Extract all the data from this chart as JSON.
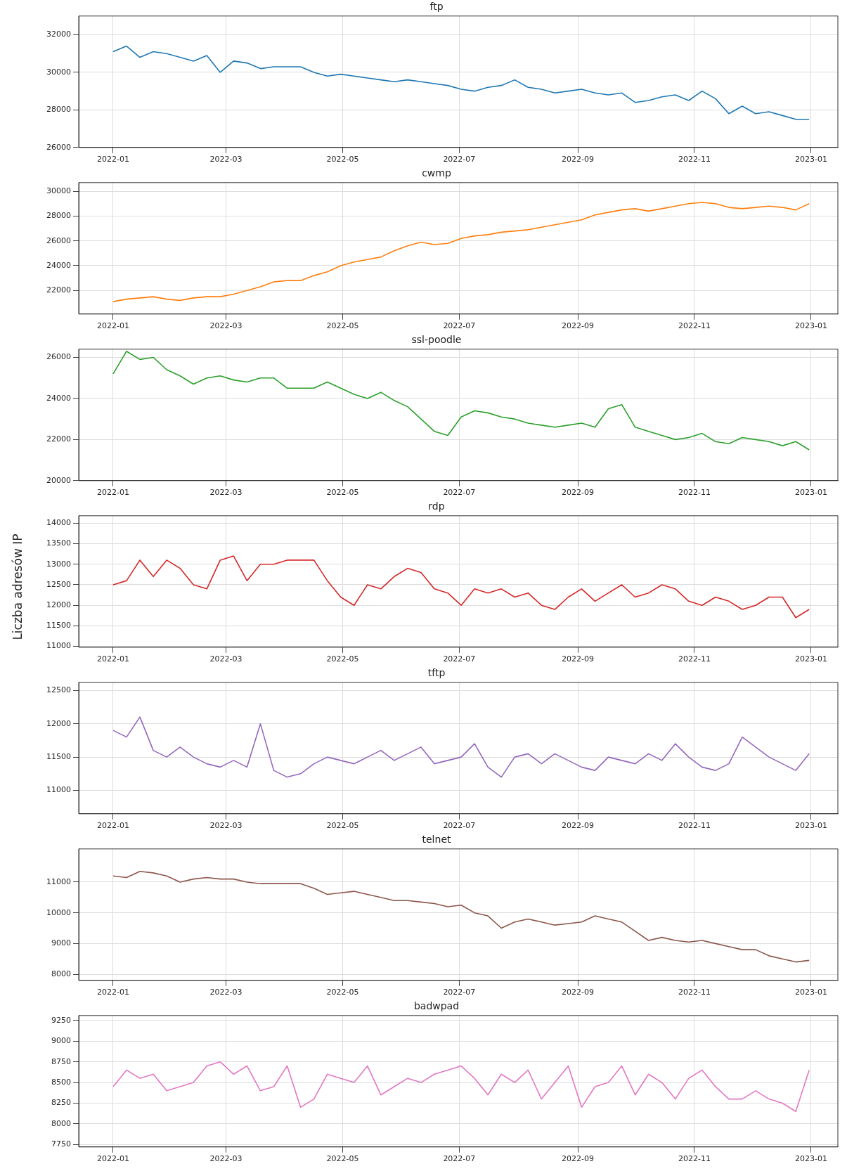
{
  "chart_data": [
    {
      "type": "line",
      "title": "ftp",
      "x": [
        "2022-01-01",
        "2022-01-08",
        "2022-01-15",
        "2022-01-22",
        "2022-01-29",
        "2022-02-05",
        "2022-02-12",
        "2022-02-19",
        "2022-02-26",
        "2022-03-05",
        "2022-03-12",
        "2022-03-19",
        "2022-03-26",
        "2022-04-02",
        "2022-04-09",
        "2022-04-16",
        "2022-04-23",
        "2022-04-30",
        "2022-05-07",
        "2022-05-14",
        "2022-05-21",
        "2022-05-28",
        "2022-06-04",
        "2022-06-11",
        "2022-06-18",
        "2022-06-25",
        "2022-07-02",
        "2022-07-09",
        "2022-07-16",
        "2022-07-23",
        "2022-07-30",
        "2022-08-06",
        "2022-08-13",
        "2022-08-20",
        "2022-08-27",
        "2022-09-03",
        "2022-09-10",
        "2022-09-17",
        "2022-09-24",
        "2022-10-01",
        "2022-10-08",
        "2022-10-15",
        "2022-10-22",
        "2022-10-29",
        "2022-11-05",
        "2022-11-12",
        "2022-11-19",
        "2022-11-26",
        "2022-12-03",
        "2022-12-10",
        "2022-12-17",
        "2022-12-24",
        "2022-12-31"
      ],
      "series": [
        {
          "color": "#1f77b4",
          "values": [
            31100,
            31400,
            30800,
            31100,
            31000,
            30800,
            30600,
            30900,
            30000,
            30600,
            30500,
            30200,
            30300,
            30300,
            30300,
            30000,
            29800,
            29900,
            29800,
            29700,
            29600,
            29500,
            29600,
            29500,
            29400,
            29300,
            29100,
            29000,
            29200,
            29300,
            29600,
            29200,
            29100,
            28900,
            29000,
            29100,
            28900,
            28800,
            28900,
            28400,
            28500,
            28700,
            28800,
            28500,
            29000,
            28600,
            27800,
            28200,
            27800,
            27900,
            27700,
            27500,
            27500
          ]
        }
      ],
      "xlim": [
        "2021-12-14",
        "2023-01-15"
      ],
      "xticks": [
        "2022-01",
        "2022-03",
        "2022-05",
        "2022-07",
        "2022-09",
        "2022-11",
        "2023-01"
      ],
      "ylim": [
        26000,
        33000
      ],
      "yticks": [
        26000,
        28000,
        30000,
        32000
      ],
      "grid": true,
      "legend": false
    },
    {
      "type": "line",
      "title": "cwmp",
      "x": [
        "2022-01-01",
        "2022-01-08",
        "2022-01-15",
        "2022-01-22",
        "2022-01-29",
        "2022-02-05",
        "2022-02-12",
        "2022-02-19",
        "2022-02-26",
        "2022-03-05",
        "2022-03-12",
        "2022-03-19",
        "2022-03-26",
        "2022-04-02",
        "2022-04-09",
        "2022-04-16",
        "2022-04-23",
        "2022-04-30",
        "2022-05-07",
        "2022-05-14",
        "2022-05-21",
        "2022-05-28",
        "2022-06-04",
        "2022-06-11",
        "2022-06-18",
        "2022-06-25",
        "2022-07-02",
        "2022-07-09",
        "2022-07-16",
        "2022-07-23",
        "2022-07-30",
        "2022-08-06",
        "2022-08-13",
        "2022-08-20",
        "2022-08-27",
        "2022-09-03",
        "2022-09-10",
        "2022-09-17",
        "2022-09-24",
        "2022-10-01",
        "2022-10-08",
        "2022-10-15",
        "2022-10-22",
        "2022-10-29",
        "2022-11-05",
        "2022-11-12",
        "2022-11-19",
        "2022-11-26",
        "2022-12-03",
        "2022-12-10",
        "2022-12-17",
        "2022-12-24",
        "2022-12-31"
      ],
      "series": [
        {
          "color": "#ff7f0e",
          "values": [
            21100,
            21300,
            21400,
            21500,
            21300,
            21200,
            21400,
            21500,
            21500,
            21700,
            22000,
            22300,
            22700,
            22800,
            22800,
            23200,
            23500,
            24000,
            24300,
            24500,
            24700,
            25200,
            25600,
            25900,
            25700,
            25800,
            26200,
            26400,
            26500,
            26700,
            26800,
            26900,
            27100,
            27300,
            27500,
            27700,
            28100,
            28300,
            28500,
            28600,
            28400,
            28600,
            28800,
            29000,
            29100,
            29000,
            28700,
            28600,
            28700,
            28800,
            28700,
            28500,
            29000
          ]
        }
      ],
      "xlim": [
        "2021-12-14",
        "2023-01-15"
      ],
      "xticks": [
        "2022-01",
        "2022-03",
        "2022-05",
        "2022-07",
        "2022-09",
        "2022-11",
        "2023-01"
      ],
      "ylim": [
        20100,
        30700
      ],
      "yticks": [
        22000,
        24000,
        26000,
        28000,
        30000
      ],
      "grid": true,
      "legend": false
    },
    {
      "type": "line",
      "title": "ssl-poodle",
      "x": [
        "2022-01-01",
        "2022-01-08",
        "2022-01-15",
        "2022-01-22",
        "2022-01-29",
        "2022-02-05",
        "2022-02-12",
        "2022-02-19",
        "2022-02-26",
        "2022-03-05",
        "2022-03-12",
        "2022-03-19",
        "2022-03-26",
        "2022-04-02",
        "2022-04-09",
        "2022-04-16",
        "2022-04-23",
        "2022-04-30",
        "2022-05-07",
        "2022-05-14",
        "2022-05-21",
        "2022-05-28",
        "2022-06-04",
        "2022-06-11",
        "2022-06-18",
        "2022-06-25",
        "2022-07-02",
        "2022-07-09",
        "2022-07-16",
        "2022-07-23",
        "2022-07-30",
        "2022-08-06",
        "2022-08-13",
        "2022-08-20",
        "2022-08-27",
        "2022-09-03",
        "2022-09-10",
        "2022-09-17",
        "2022-09-24",
        "2022-10-01",
        "2022-10-08",
        "2022-10-15",
        "2022-10-22",
        "2022-10-29",
        "2022-11-05",
        "2022-11-12",
        "2022-11-19",
        "2022-11-26",
        "2022-12-03",
        "2022-12-10",
        "2022-12-17",
        "2022-12-24",
        "2022-12-31"
      ],
      "series": [
        {
          "color": "#2ca02c",
          "values": [
            25200,
            26300,
            25900,
            26000,
            25400,
            25100,
            24700,
            25000,
            25100,
            24900,
            24800,
            25000,
            25000,
            24500,
            24500,
            24500,
            24800,
            24500,
            24200,
            24000,
            24300,
            23900,
            23600,
            23000,
            22400,
            22200,
            23100,
            23400,
            23300,
            23100,
            23000,
            22800,
            22700,
            22600,
            22700,
            22800,
            22600,
            23500,
            23700,
            22600,
            22400,
            22200,
            22000,
            22100,
            22300,
            21900,
            21800,
            22100,
            22000,
            21900,
            21700,
            21900,
            21500
          ]
        }
      ],
      "xlim": [
        "2021-12-14",
        "2023-01-15"
      ],
      "xticks": [
        "2022-01",
        "2022-03",
        "2022-05",
        "2022-07",
        "2022-09",
        "2022-11",
        "2023-01"
      ],
      "ylim": [
        20000,
        26400
      ],
      "yticks": [
        20000,
        22000,
        24000,
        26000
      ],
      "grid": true,
      "legend": false
    },
    {
      "type": "line",
      "title": "rdp",
      "ylabel": "Liczba adresów IP",
      "x": [
        "2022-01-01",
        "2022-01-08",
        "2022-01-15",
        "2022-01-22",
        "2022-01-29",
        "2022-02-05",
        "2022-02-12",
        "2022-02-19",
        "2022-02-26",
        "2022-03-05",
        "2022-03-12",
        "2022-03-19",
        "2022-03-26",
        "2022-04-02",
        "2022-04-09",
        "2022-04-16",
        "2022-04-23",
        "2022-04-30",
        "2022-05-07",
        "2022-05-14",
        "2022-05-21",
        "2022-05-28",
        "2022-06-04",
        "2022-06-11",
        "2022-06-18",
        "2022-06-25",
        "2022-07-02",
        "2022-07-09",
        "2022-07-16",
        "2022-07-23",
        "2022-07-30",
        "2022-08-06",
        "2022-08-13",
        "2022-08-20",
        "2022-08-27",
        "2022-09-03",
        "2022-09-10",
        "2022-09-17",
        "2022-09-24",
        "2022-10-01",
        "2022-10-08",
        "2022-10-15",
        "2022-10-22",
        "2022-10-29",
        "2022-11-05",
        "2022-11-12",
        "2022-11-19",
        "2022-11-26",
        "2022-12-03",
        "2022-12-10",
        "2022-12-17",
        "2022-12-24",
        "2022-12-31"
      ],
      "series": [
        {
          "color": "#d62728",
          "values": [
            12500,
            12600,
            13100,
            12700,
            13100,
            12900,
            12500,
            12400,
            13100,
            13200,
            12600,
            13000,
            13000,
            13100,
            13100,
            13100,
            12600,
            12200,
            12000,
            12500,
            12400,
            12700,
            12900,
            12800,
            12400,
            12300,
            12000,
            12400,
            12300,
            12400,
            12200,
            12300,
            12000,
            11900,
            12200,
            12400,
            12100,
            12300,
            12500,
            12200,
            12300,
            12500,
            12400,
            12100,
            12000,
            12200,
            12100,
            11900,
            12000,
            12200,
            12200,
            11700,
            11900
          ]
        }
      ],
      "xlim": [
        "2021-12-14",
        "2023-01-15"
      ],
      "xticks": [
        "2022-01",
        "2022-03",
        "2022-05",
        "2022-07",
        "2022-09",
        "2022-11",
        "2023-01"
      ],
      "ylim": [
        10980,
        14180
      ],
      "yticks": [
        11000,
        11500,
        12000,
        12500,
        13000,
        13500,
        14000
      ],
      "grid": true,
      "legend": false
    },
    {
      "type": "line",
      "title": "tftp",
      "x": [
        "2022-01-01",
        "2022-01-08",
        "2022-01-15",
        "2022-01-22",
        "2022-01-29",
        "2022-02-05",
        "2022-02-12",
        "2022-02-19",
        "2022-02-26",
        "2022-03-05",
        "2022-03-12",
        "2022-03-19",
        "2022-03-26",
        "2022-04-02",
        "2022-04-09",
        "2022-04-16",
        "2022-04-23",
        "2022-04-30",
        "2022-05-07",
        "2022-05-14",
        "2022-05-21",
        "2022-05-28",
        "2022-06-04",
        "2022-06-11",
        "2022-06-18",
        "2022-06-25",
        "2022-07-02",
        "2022-07-09",
        "2022-07-16",
        "2022-07-23",
        "2022-07-30",
        "2022-08-06",
        "2022-08-13",
        "2022-08-20",
        "2022-08-27",
        "2022-09-03",
        "2022-09-10",
        "2022-09-17",
        "2022-09-24",
        "2022-10-01",
        "2022-10-08",
        "2022-10-15",
        "2022-10-22",
        "2022-10-29",
        "2022-11-05",
        "2022-11-12",
        "2022-11-19",
        "2022-11-26",
        "2022-12-03",
        "2022-12-10",
        "2022-12-17",
        "2022-12-24",
        "2022-12-31"
      ],
      "series": [
        {
          "color": "#9467bd",
          "values": [
            11900,
            11800,
            12100,
            11600,
            11500,
            11650,
            11500,
            11400,
            11350,
            11450,
            11350,
            12000,
            11300,
            11200,
            11250,
            11400,
            11500,
            11450,
            11400,
            11500,
            11600,
            11450,
            11550,
            11650,
            11400,
            11450,
            11500,
            11700,
            11350,
            11200,
            11500,
            11550,
            11400,
            11550,
            11450,
            11350,
            11300,
            11500,
            11450,
            11400,
            11550,
            11450,
            11700,
            11500,
            11350,
            11300,
            11400,
            11800,
            11650,
            11500,
            11400,
            11300,
            11550
          ]
        }
      ],
      "xlim": [
        "2021-12-14",
        "2023-01-15"
      ],
      "xticks": [
        "2022-01",
        "2022-03",
        "2022-05",
        "2022-07",
        "2022-09",
        "2022-11",
        "2023-01"
      ],
      "ylim": [
        10650,
        12620
      ],
      "yticks": [
        11000,
        11500,
        12000,
        12500
      ],
      "grid": true,
      "legend": false
    },
    {
      "type": "line",
      "title": "telnet",
      "x": [
        "2022-01-01",
        "2022-01-08",
        "2022-01-15",
        "2022-01-22",
        "2022-01-29",
        "2022-02-05",
        "2022-02-12",
        "2022-02-19",
        "2022-02-26",
        "2022-03-05",
        "2022-03-12",
        "2022-03-19",
        "2022-03-26",
        "2022-04-02",
        "2022-04-09",
        "2022-04-16",
        "2022-04-23",
        "2022-04-30",
        "2022-05-07",
        "2022-05-14",
        "2022-05-21",
        "2022-05-28",
        "2022-06-04",
        "2022-06-11",
        "2022-06-18",
        "2022-06-25",
        "2022-07-02",
        "2022-07-09",
        "2022-07-16",
        "2022-07-23",
        "2022-07-30",
        "2022-08-06",
        "2022-08-13",
        "2022-08-20",
        "2022-08-27",
        "2022-09-03",
        "2022-09-10",
        "2022-09-17",
        "2022-09-24",
        "2022-10-01",
        "2022-10-08",
        "2022-10-15",
        "2022-10-22",
        "2022-10-29",
        "2022-11-05",
        "2022-11-12",
        "2022-11-19",
        "2022-11-26",
        "2022-12-03",
        "2022-12-10",
        "2022-12-17",
        "2022-12-24",
        "2022-12-31"
      ],
      "series": [
        {
          "color": "#8c564b",
          "values": [
            11200,
            11150,
            11350,
            11300,
            11200,
            11000,
            11100,
            11150,
            11100,
            11100,
            11000,
            10950,
            10950,
            10950,
            10950,
            10800,
            10600,
            10650,
            10700,
            10600,
            10500,
            10400,
            10400,
            10350,
            10300,
            10200,
            10250,
            10000,
            9900,
            9500,
            9700,
            9800,
            9700,
            9600,
            9650,
            9700,
            9900,
            9800,
            9700,
            9400,
            9100,
            9200,
            9100,
            9050,
            9100,
            9000,
            8900,
            8800,
            8800,
            8600,
            8500,
            8400,
            8450
          ]
        }
      ],
      "xlim": [
        "2021-12-14",
        "2023-01-15"
      ],
      "xticks": [
        "2022-01",
        "2022-03",
        "2022-05",
        "2022-07",
        "2022-09",
        "2022-11",
        "2023-01"
      ],
      "ylim": [
        7800,
        12080
      ],
      "yticks": [
        8000,
        9000,
        10000,
        11000
      ],
      "grid": true,
      "legend": false
    },
    {
      "type": "line",
      "title": "badwpad",
      "x": [
        "2022-01-01",
        "2022-01-08",
        "2022-01-15",
        "2022-01-22",
        "2022-01-29",
        "2022-02-05",
        "2022-02-12",
        "2022-02-19",
        "2022-02-26",
        "2022-03-05",
        "2022-03-12",
        "2022-03-19",
        "2022-03-26",
        "2022-04-02",
        "2022-04-09",
        "2022-04-16",
        "2022-04-23",
        "2022-04-30",
        "2022-05-07",
        "2022-05-14",
        "2022-05-21",
        "2022-05-28",
        "2022-06-04",
        "2022-06-11",
        "2022-06-18",
        "2022-06-25",
        "2022-07-02",
        "2022-07-09",
        "2022-07-16",
        "2022-07-23",
        "2022-07-30",
        "2022-08-06",
        "2022-08-13",
        "2022-08-20",
        "2022-08-27",
        "2022-09-03",
        "2022-09-10",
        "2022-09-17",
        "2022-09-24",
        "2022-10-01",
        "2022-10-08",
        "2022-10-15",
        "2022-10-22",
        "2022-10-29",
        "2022-11-05",
        "2022-11-12",
        "2022-11-19",
        "2022-11-26",
        "2022-12-03",
        "2022-12-10",
        "2022-12-17",
        "2022-12-24",
        "2022-12-31"
      ],
      "series": [
        {
          "color": "#e377c2",
          "values": [
            8450,
            8650,
            8550,
            8600,
            8400,
            8450,
            8500,
            8700,
            8750,
            8600,
            8700,
            8400,
            8450,
            8700,
            8200,
            8300,
            8600,
            8550,
            8500,
            8700,
            8350,
            8450,
            8550,
            8500,
            8600,
            8650,
            8700,
            8550,
            8350,
            8600,
            8500,
            8650,
            8300,
            8500,
            8700,
            8200,
            8450,
            8500,
            8700,
            8350,
            8600,
            8500,
            8300,
            8550,
            8650,
            8450,
            8300,
            8300,
            8400,
            8300,
            8250,
            8150,
            8650
          ]
        }
      ],
      "xlim": [
        "2021-12-14",
        "2023-01-15"
      ],
      "xticks": [
        "2022-01",
        "2022-03",
        "2022-05",
        "2022-07",
        "2022-09",
        "2022-11",
        "2023-01"
      ],
      "ylim": [
        7720,
        9310
      ],
      "yticks": [
        7750,
        8000,
        8250,
        8500,
        8750,
        9000,
        9250
      ],
      "grid": true,
      "legend": false
    }
  ]
}
